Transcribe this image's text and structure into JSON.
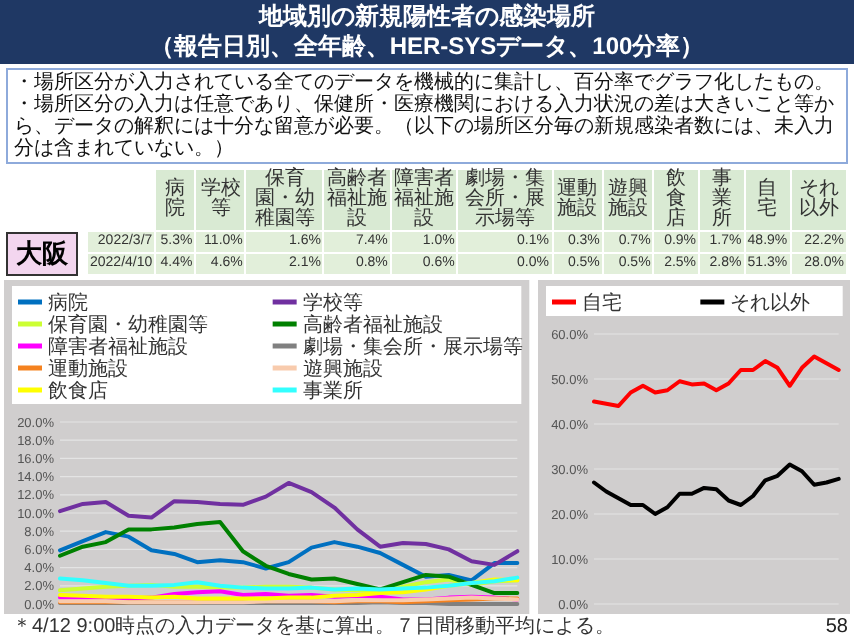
{
  "chart_data": [
    {
      "type": "other",
      "title": "地域別の新規陽性者の感染場所",
      "subtitle": "（報告日別、全年齢、HER-SYSデータ、100分率）",
      "annotations": [
        "・場所区分が入力されている全てのデータを機械的に集計し、百分率でグラフ化したもの。",
        "・場所区分の入力は任意であり、保健所・医療機関における入力状況の差は大きいこと等から、データの解釈には十分な留意が必要。（以下の場所区分毎の新規感染者数には、未入力分は含まれていない。）",
        "大阪",
        "58"
      ],
      "categories": [
        "病院",
        "学校等",
        "保育園・幼稚園等",
        "高齢者福祉施設",
        "障害者福祉施設",
        "劇場・集会所・展示場等",
        "運動施設",
        "遊興施設",
        "飲食店",
        "事業所",
        "自宅",
        "それ以外"
      ],
      "y_categories": [
        "2022/3/7",
        "2022/4/10"
      ],
      "cell_labels": [
        [
          "5.3%",
          "11.0%",
          "1.6%",
          "7.4%",
          "1.0%",
          "0.1%",
          "0.3%",
          "0.7%",
          "0.9%",
          "1.7%",
          "48.9%",
          "22.2%"
        ],
        [
          "4.4%",
          "4.6%",
          "2.1%",
          "0.8%",
          "0.6%",
          "0.0%",
          "0.5%",
          "0.5%",
          "2.5%",
          "2.8%",
          "51.3%",
          "28.0%"
        ]
      ]
    },
    {
      "type": "line",
      "legend": "top",
      "grid": "y",
      "ylim": [
        0,
        20
      ],
      "yticks": [
        {
          "value": 0,
          "label": "0.0%"
        },
        {
          "value": 2,
          "label": "2.0%"
        },
        {
          "value": 4,
          "label": "4.0%"
        },
        {
          "value": 6,
          "label": "6.0%"
        },
        {
          "value": 8,
          "label": "8.0%"
        },
        {
          "value": 10,
          "label": "10.0%"
        },
        {
          "value": 12,
          "label": "12.0%"
        },
        {
          "value": 14,
          "label": "14.0%"
        },
        {
          "value": 16,
          "label": "16.0%"
        },
        {
          "value": 18,
          "label": "18.0%"
        },
        {
          "value": 20,
          "label": "20.0%"
        }
      ],
      "categories": [
        null,
        null,
        null,
        null,
        null,
        null,
        null,
        null,
        null,
        null,
        null,
        null,
        null,
        null,
        null,
        null,
        null,
        null,
        null,
        null,
        null
      ],
      "annotations": [
        "＊4/12 9:00時点の入力データを基に算出。７日間移動平均による。"
      ],
      "series": [
        {
          "name": "病院",
          "color": "#0070c0",
          "values": [
            5.9,
            6.9,
            7.9,
            7.4,
            5.9,
            5.5,
            4.6,
            4.8,
            4.6,
            3.9,
            4.6,
            6.2,
            6.8,
            6.3,
            5.6,
            4.3,
            3.0,
            3.2,
            2.6,
            4.5,
            4.5
          ]
        },
        {
          "name": "学校等",
          "color": "#7030a0",
          "values": [
            10.2,
            11.0,
            11.2,
            9.7,
            9.5,
            11.3,
            11.2,
            11.0,
            10.9,
            11.8,
            13.3,
            12.3,
            10.6,
            8.2,
            6.3,
            6.7,
            6.6,
            6.0,
            4.7,
            4.3,
            5.8
          ]
        },
        {
          "name": "保育園・幼稚園等",
          "color": "#ccff33",
          "values": [
            1.5,
            1.7,
            1.9,
            2.0,
            2.1,
            1.9,
            1.9,
            1.8,
            1.8,
            1.9,
            1.9,
            1.8,
            1.6,
            1.5,
            1.4,
            1.9,
            2.4,
            2.7,
            2.1,
            2.5,
            2.6
          ]
        },
        {
          "name": "高齢者福祉施設",
          "color": "#008000",
          "values": [
            5.3,
            6.3,
            6.8,
            8.2,
            8.2,
            8.4,
            8.8,
            9.0,
            5.8,
            4.2,
            3.3,
            2.7,
            2.8,
            2.2,
            1.6,
            2.4,
            3.2,
            3.0,
            2.1,
            1.2,
            1.2
          ]
        },
        {
          "name": "障害者福祉施設",
          "color": "#ff00ff",
          "values": [
            0.7,
            0.7,
            0.7,
            0.6,
            0.7,
            1.1,
            1.3,
            1.4,
            1.0,
            1.1,
            0.9,
            1.0,
            0.8,
            0.9,
            0.8,
            0.5,
            0.5,
            0.7,
            0.8,
            0.7,
            0.5
          ]
        },
        {
          "name": "劇場・集会所・展示場等",
          "color": "#808080",
          "values": [
            0.1,
            0.1,
            0.1,
            0.1,
            0.1,
            0.1,
            0.1,
            0.1,
            0.1,
            0.1,
            0.1,
            0.1,
            0.1,
            0.1,
            0.2,
            0.1,
            0.1,
            0.0,
            0.0,
            0.0,
            0.0
          ]
        },
        {
          "name": "運動施設",
          "color": "#f5821f",
          "values": [
            0.2,
            0.2,
            0.2,
            0.2,
            0.2,
            0.2,
            0.2,
            0.3,
            0.3,
            0.3,
            0.3,
            0.3,
            0.2,
            0.3,
            0.3,
            0.2,
            0.3,
            0.4,
            0.5,
            0.6,
            0.6
          ]
        },
        {
          "name": "遊興施設",
          "color": "#f8cbad",
          "values": [
            0.3,
            0.3,
            0.3,
            0.2,
            0.2,
            0.2,
            0.2,
            0.2,
            0.2,
            0.3,
            0.3,
            0.3,
            0.3,
            0.4,
            0.4,
            0.4,
            0.5,
            0.6,
            0.7,
            0.6,
            0.5
          ]
        },
        {
          "name": "飲食店",
          "color": "#ffff00",
          "values": [
            1.0,
            0.9,
            0.8,
            0.8,
            0.7,
            0.8,
            0.6,
            0.6,
            0.6,
            0.6,
            0.7,
            0.7,
            0.9,
            1.0,
            1.2,
            1.3,
            1.6,
            2.0,
            2.3,
            2.7,
            2.6
          ]
        },
        {
          "name": "事業所",
          "color": "#33ffff",
          "values": [
            2.8,
            2.6,
            2.3,
            2.0,
            2.0,
            2.1,
            2.4,
            2.0,
            1.8,
            1.7,
            1.7,
            1.8,
            1.6,
            1.7,
            1.6,
            1.7,
            1.8,
            2.0,
            2.3,
            2.5,
            2.9
          ]
        }
      ]
    },
    {
      "type": "line",
      "legend": "top",
      "grid": "y",
      "ylim": [
        0,
        60
      ],
      "yticks": [
        {
          "value": 0,
          "label": "0.0%"
        },
        {
          "value": 10,
          "label": "10.0%"
        },
        {
          "value": 20,
          "label": "20.0%"
        },
        {
          "value": 30,
          "label": "30.0%"
        },
        {
          "value": 40,
          "label": "40.0%"
        },
        {
          "value": 50,
          "label": "50.0%"
        },
        {
          "value": 60,
          "label": "60.0%"
        }
      ],
      "categories": [
        null,
        null,
        null,
        null,
        null,
        null,
        null,
        null,
        null,
        null,
        null,
        null,
        null,
        null,
        null,
        null,
        null,
        null,
        null,
        null,
        null
      ],
      "series": [
        {
          "name": "自宅",
          "color": "#ff0000",
          "values": [
            45.0,
            44.5,
            44.0,
            47.0,
            48.5,
            47.0,
            47.5,
            49.5,
            48.8,
            49.0,
            47.5,
            49.0,
            52.0,
            52.0,
            54.0,
            52.5,
            48.5,
            52.5,
            55.0,
            53.5,
            52.0
          ]
        },
        {
          "name": "それ以外",
          "color": "#000000",
          "values": [
            27.0,
            25.0,
            23.5,
            22.0,
            22.0,
            20.0,
            21.5,
            24.5,
            24.5,
            25.8,
            25.5,
            23.0,
            22.0,
            24.0,
            27.5,
            28.5,
            31.0,
            29.5,
            26.5,
            27.0,
            27.8
          ]
        }
      ]
    }
  ]
}
